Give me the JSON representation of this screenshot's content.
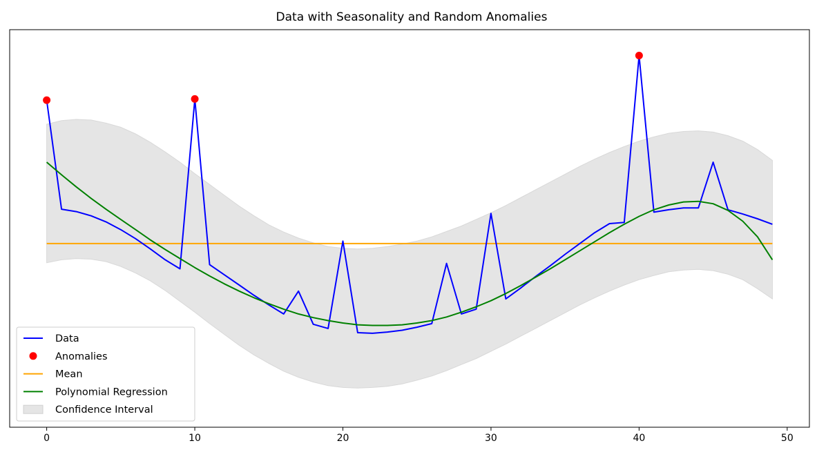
{
  "chart_data": {
    "type": "line",
    "title": "Data with Seasonality and Random Anomalies",
    "xlabel": "",
    "ylabel": "",
    "xlim": [
      -2.5,
      51.5
    ],
    "ylim": [
      -3.05,
      3.55
    ],
    "xticks": [
      0,
      10,
      20,
      30,
      40,
      50
    ],
    "yticks": [],
    "grid": false,
    "legend_position": "lower-left",
    "series": [
      {
        "name": "Data",
        "kind": "line",
        "color": "#0000ff",
        "x": [
          0,
          1,
          2,
          3,
          4,
          5,
          6,
          7,
          8,
          9,
          10,
          11,
          12,
          13,
          14,
          15,
          16,
          17,
          18,
          19,
          20,
          21,
          22,
          23,
          24,
          25,
          26,
          27,
          28,
          29,
          30,
          31,
          32,
          33,
          34,
          35,
          36,
          37,
          38,
          39,
          40,
          41,
          42,
          43,
          44,
          45,
          46,
          47,
          48,
          49
        ],
        "y": [
          2.38,
          0.57,
          0.53,
          0.46,
          0.36,
          0.23,
          0.08,
          -0.09,
          -0.27,
          -0.42,
          2.4,
          -0.35,
          -0.52,
          -0.69,
          -0.86,
          -1.02,
          -1.17,
          -0.79,
          -1.34,
          -1.41,
          0.04,
          -1.48,
          -1.49,
          -1.47,
          -1.44,
          -1.39,
          -1.33,
          -0.33,
          -1.17,
          -1.09,
          0.5,
          -0.92,
          -0.74,
          -0.55,
          -0.37,
          -0.18,
          0.0,
          0.18,
          0.33,
          0.35,
          3.12,
          0.52,
          0.56,
          0.59,
          0.59,
          1.35,
          0.56,
          0.49,
          0.41,
          0.32
        ]
      },
      {
        "name": "Anomalies",
        "kind": "scatter",
        "color": "#ff0000",
        "x": [
          0,
          10,
          40
        ],
        "y": [
          2.38,
          2.4,
          3.12
        ]
      },
      {
        "name": "Mean",
        "kind": "hline",
        "color": "#ffa500",
        "y": -0.0
      },
      {
        "name": "Polynomial Regression",
        "kind": "line",
        "color": "#008000",
        "x": [
          0,
          1,
          2,
          3,
          4,
          5,
          6,
          7,
          8,
          9,
          10,
          11,
          12,
          13,
          14,
          15,
          16,
          17,
          18,
          19,
          20,
          21,
          22,
          23,
          24,
          25,
          26,
          27,
          28,
          29,
          30,
          31,
          32,
          33,
          34,
          35,
          36,
          37,
          38,
          39,
          40,
          41,
          42,
          43,
          44,
          45,
          46,
          47,
          48,
          49
        ],
        "y": [
          1.35,
          1.14,
          0.94,
          0.75,
          0.57,
          0.4,
          0.23,
          0.06,
          -0.1,
          -0.25,
          -0.4,
          -0.54,
          -0.67,
          -0.79,
          -0.9,
          -1.0,
          -1.09,
          -1.17,
          -1.23,
          -1.28,
          -1.32,
          -1.35,
          -1.36,
          -1.36,
          -1.35,
          -1.32,
          -1.28,
          -1.22,
          -1.14,
          -1.05,
          -0.95,
          -0.83,
          -0.7,
          -0.56,
          -0.42,
          -0.27,
          -0.12,
          0.03,
          0.18,
          0.32,
          0.45,
          0.56,
          0.64,
          0.69,
          0.7,
          0.66,
          0.55,
          0.37,
          0.11,
          -0.27
        ]
      },
      {
        "name": "Confidence Interval",
        "kind": "band",
        "color": "#e5e5e5",
        "x": [
          0,
          1,
          2,
          3,
          4,
          5,
          6,
          7,
          8,
          9,
          10,
          11,
          12,
          13,
          14,
          15,
          16,
          17,
          18,
          19,
          20,
          21,
          22,
          23,
          24,
          25,
          26,
          27,
          28,
          29,
          30,
          31,
          32,
          33,
          34,
          35,
          36,
          37,
          38,
          39,
          40,
          41,
          42,
          43,
          44,
          45,
          46,
          47,
          48,
          49
        ],
        "lower": [
          -0.32,
          -0.27,
          -0.25,
          -0.26,
          -0.3,
          -0.38,
          -0.49,
          -0.62,
          -0.78,
          -0.96,
          -1.14,
          -1.33,
          -1.51,
          -1.69,
          -1.85,
          -1.99,
          -2.12,
          -2.22,
          -2.3,
          -2.36,
          -2.39,
          -2.4,
          -2.39,
          -2.37,
          -2.33,
          -2.27,
          -2.2,
          -2.11,
          -2.01,
          -1.91,
          -1.79,
          -1.67,
          -1.54,
          -1.41,
          -1.28,
          -1.15,
          -1.02,
          -0.9,
          -0.79,
          -0.69,
          -0.6,
          -0.53,
          -0.47,
          -0.44,
          -0.43,
          -0.45,
          -0.51,
          -0.6,
          -0.75,
          -0.92
        ],
        "upper": [
          1.98,
          2.04,
          2.06,
          2.05,
          2.0,
          1.93,
          1.82,
          1.68,
          1.52,
          1.35,
          1.16,
          0.98,
          0.8,
          0.62,
          0.46,
          0.31,
          0.19,
          0.09,
          0.01,
          -0.05,
          -0.08,
          -0.09,
          -0.08,
          -0.05,
          -0.01,
          0.04,
          0.11,
          0.2,
          0.29,
          0.4,
          0.51,
          0.63,
          0.76,
          0.89,
          1.02,
          1.15,
          1.28,
          1.4,
          1.51,
          1.61,
          1.7,
          1.77,
          1.83,
          1.86,
          1.87,
          1.85,
          1.79,
          1.7,
          1.56,
          1.38
        ]
      }
    ]
  }
}
